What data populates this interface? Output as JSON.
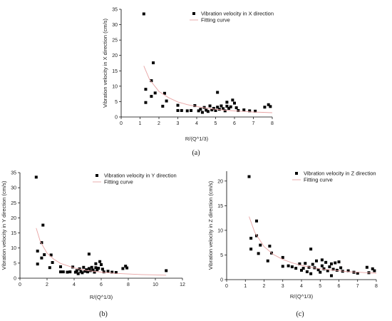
{
  "chart_data": [
    {
      "type": "scatter",
      "caption": "(a)",
      "xlabel": "R/(Q^1/3)",
      "ylabel": "Vibration velocity in X direction (cm/s)",
      "xlim": [
        0,
        8
      ],
      "ylim": [
        0,
        35
      ],
      "xticks": [
        0,
        1,
        2,
        3,
        4,
        5,
        6,
        7,
        8
      ],
      "yticks": [
        0,
        5,
        10,
        15,
        20,
        25,
        30,
        35
      ],
      "legend": "top-right",
      "grid": false,
      "series": [
        {
          "name": "Vibration velocity in X direction",
          "marker": "square",
          "color": "#000000",
          "points": [
            [
              1.2,
              33.5
            ],
            [
              1.3,
              9.0
            ],
            [
              1.3,
              4.7
            ],
            [
              1.6,
              11.8
            ],
            [
              1.6,
              6.7
            ],
            [
              1.7,
              17.6
            ],
            [
              1.8,
              7.8
            ],
            [
              2.2,
              3.5
            ],
            [
              2.3,
              7.7
            ],
            [
              2.4,
              5.2
            ],
            [
              3.0,
              3.8
            ],
            [
              3.0,
              2.1
            ],
            [
              3.2,
              2.1
            ],
            [
              3.5,
              2.0
            ],
            [
              3.7,
              2.1
            ],
            [
              3.9,
              3.7
            ],
            [
              4.1,
              2.0
            ],
            [
              4.2,
              2.5
            ],
            [
              4.3,
              1.5
            ],
            [
              4.4,
              3.1
            ],
            [
              4.5,
              2.2
            ],
            [
              4.6,
              1.8
            ],
            [
              4.7,
              3.6
            ],
            [
              4.8,
              2.3
            ],
            [
              4.9,
              2.8
            ],
            [
              5.0,
              2.1
            ],
            [
              5.1,
              3.2
            ],
            [
              5.1,
              8.0
            ],
            [
              5.2,
              2.5
            ],
            [
              5.3,
              3.6
            ],
            [
              5.4,
              2.7
            ],
            [
              5.5,
              2.0
            ],
            [
              5.6,
              3.5
            ],
            [
              5.6,
              4.8
            ],
            [
              5.7,
              2.8
            ],
            [
              5.8,
              3.3
            ],
            [
              5.9,
              5.5
            ],
            [
              6.0,
              4.5
            ],
            [
              6.1,
              3.0
            ],
            [
              6.2,
              2.1
            ],
            [
              6.5,
              2.3
            ],
            [
              6.8,
              2.0
            ],
            [
              7.1,
              1.9
            ],
            [
              7.6,
              3.2
            ],
            [
              7.8,
              4.0
            ],
            [
              7.9,
              3.4
            ]
          ]
        },
        {
          "name": "Fitting curve",
          "type": "line",
          "color": "#e8a3a3",
          "points": [
            [
              1.2,
              16.6
            ],
            [
              1.5,
              12.2
            ],
            [
              2.0,
              8.3
            ],
            [
              2.5,
              6.3
            ],
            [
              3.0,
              4.9
            ],
            [
              3.5,
              4.0
            ],
            [
              4.0,
              3.4
            ],
            [
              4.5,
              2.9
            ],
            [
              5.0,
              2.5
            ],
            [
              5.5,
              2.2
            ],
            [
              6.0,
              2.0
            ],
            [
              6.5,
              1.8
            ],
            [
              7.0,
              1.6
            ],
            [
              7.5,
              1.5
            ],
            [
              8.0,
              1.4
            ]
          ]
        }
      ]
    },
    {
      "type": "scatter",
      "caption": "(b)",
      "xlabel": "R/(Q^1/3)",
      "ylabel": "Vibration velocity in Y direction (cm/s)",
      "xlim": [
        0,
        12
      ],
      "ylim": [
        0,
        35
      ],
      "xticks": [
        0,
        2,
        4,
        6,
        8,
        10,
        12
      ],
      "yticks": [
        0,
        5,
        10,
        15,
        20,
        25,
        30,
        35
      ],
      "legend": "top-right",
      "grid": false,
      "series": [
        {
          "name": "Vibration velocity in Y direction",
          "marker": "square",
          "color": "#000000",
          "points": [
            [
              1.2,
              33.5
            ],
            [
              1.3,
              9.0
            ],
            [
              1.3,
              4.7
            ],
            [
              1.6,
              11.8
            ],
            [
              1.6,
              6.7
            ],
            [
              1.7,
              17.6
            ],
            [
              1.8,
              7.8
            ],
            [
              2.2,
              3.5
            ],
            [
              2.3,
              7.7
            ],
            [
              2.4,
              5.2
            ],
            [
              3.0,
              3.8
            ],
            [
              3.0,
              2.1
            ],
            [
              3.2,
              2.1
            ],
            [
              3.5,
              2.0
            ],
            [
              3.7,
              2.1
            ],
            [
              3.9,
              3.7
            ],
            [
              4.1,
              2.0
            ],
            [
              4.2,
              2.5
            ],
            [
              4.3,
              1.5
            ],
            [
              4.4,
              3.1
            ],
            [
              4.5,
              2.2
            ],
            [
              4.6,
              1.8
            ],
            [
              4.7,
              3.6
            ],
            [
              4.8,
              2.3
            ],
            [
              4.9,
              2.8
            ],
            [
              5.0,
              2.1
            ],
            [
              5.1,
              3.2
            ],
            [
              5.1,
              8.0
            ],
            [
              5.2,
              2.5
            ],
            [
              5.3,
              3.6
            ],
            [
              5.4,
              2.7
            ],
            [
              5.5,
              2.0
            ],
            [
              5.6,
              3.5
            ],
            [
              5.6,
              4.8
            ],
            [
              5.7,
              2.8
            ],
            [
              5.8,
              3.3
            ],
            [
              5.9,
              5.5
            ],
            [
              6.0,
              4.5
            ],
            [
              6.1,
              3.0
            ],
            [
              6.2,
              2.1
            ],
            [
              6.5,
              2.3
            ],
            [
              6.8,
              2.0
            ],
            [
              7.1,
              1.9
            ],
            [
              7.6,
              3.2
            ],
            [
              7.8,
              4.0
            ],
            [
              7.9,
              3.4
            ],
            [
              10.8,
              2.5
            ]
          ]
        },
        {
          "name": "Fitting curve",
          "type": "line",
          "color": "#e8a3a3",
          "points": [
            [
              1.2,
              16.6
            ],
            [
              1.5,
              12.2
            ],
            [
              2.0,
              8.3
            ],
            [
              2.5,
              6.3
            ],
            [
              3.0,
              4.9
            ],
            [
              4.0,
              3.4
            ],
            [
              5.0,
              2.5
            ],
            [
              6.0,
              2.0
            ],
            [
              7.0,
              1.6
            ],
            [
              8.0,
              1.4
            ],
            [
              9.0,
              1.2
            ],
            [
              10.0,
              1.1
            ],
            [
              10.8,
              1.0
            ]
          ]
        }
      ]
    },
    {
      "type": "scatter",
      "caption": "(c)",
      "xlabel": "R/(Q^1/3)",
      "ylabel": "Vibration velocity in Z direction (cm/s)",
      "xlim": [
        0,
        8
      ],
      "ylim": [
        0,
        22
      ],
      "xticks": [
        0,
        1,
        2,
        3,
        4,
        5,
        6,
        7,
        8
      ],
      "yticks": [
        0,
        5,
        10,
        15,
        20
      ],
      "legend": "top-right",
      "grid": false,
      "series": [
        {
          "name": "Vibration velocity in Z direction",
          "marker": "square",
          "color": "#000000",
          "points": [
            [
              1.2,
              20.9
            ],
            [
              1.3,
              8.4
            ],
            [
              1.3,
              6.2
            ],
            [
              1.6,
              11.9
            ],
            [
              1.6,
              8.9
            ],
            [
              1.7,
              5.3
            ],
            [
              1.8,
              7.0
            ],
            [
              2.2,
              3.8
            ],
            [
              2.3,
              6.8
            ],
            [
              2.4,
              5.4
            ],
            [
              3.0,
              4.5
            ],
            [
              3.0,
              2.7
            ],
            [
              3.3,
              2.8
            ],
            [
              3.5,
              2.6
            ],
            [
              3.7,
              2.3
            ],
            [
              3.9,
              3.2
            ],
            [
              4.0,
              1.9
            ],
            [
              4.1,
              2.3
            ],
            [
              4.2,
              3.3
            ],
            [
              4.3,
              1.6
            ],
            [
              4.4,
              2.5
            ],
            [
              4.5,
              6.2
            ],
            [
              4.5,
              1.2
            ],
            [
              4.6,
              3.1
            ],
            [
              4.7,
              2.4
            ],
            [
              4.8,
              3.8
            ],
            [
              4.9,
              2.0
            ],
            [
              5.0,
              1.5
            ],
            [
              5.1,
              2.8
            ],
            [
              5.1,
              4.0
            ],
            [
              5.2,
              2.2
            ],
            [
              5.3,
              3.5
            ],
            [
              5.4,
              1.8
            ],
            [
              5.5,
              2.6
            ],
            [
              5.6,
              0.8
            ],
            [
              5.6,
              3.2
            ],
            [
              5.7,
              2.1
            ],
            [
              5.8,
              3.4
            ],
            [
              5.9,
              1.9
            ],
            [
              6.0,
              3.6
            ],
            [
              6.1,
              2.4
            ],
            [
              6.2,
              1.7
            ],
            [
              6.5,
              1.8
            ],
            [
              6.8,
              1.5
            ],
            [
              7.0,
              1.3
            ],
            [
              7.5,
              2.5
            ],
            [
              7.6,
              1.4
            ],
            [
              7.8,
              2.2
            ],
            [
              7.9,
              1.8
            ]
          ]
        },
        {
          "name": "Fitting curve",
          "type": "line",
          "color": "#e8a3a3",
          "points": [
            [
              1.2,
              12.8
            ],
            [
              1.5,
              9.6
            ],
            [
              2.0,
              6.7
            ],
            [
              2.5,
              5.1
            ],
            [
              3.0,
              4.1
            ],
            [
              3.5,
              3.4
            ],
            [
              4.0,
              2.9
            ],
            [
              4.5,
              2.5
            ],
            [
              5.0,
              2.2
            ],
            [
              5.5,
              2.0
            ],
            [
              6.0,
              1.8
            ],
            [
              6.5,
              1.6
            ],
            [
              7.0,
              1.5
            ],
            [
              7.5,
              1.4
            ],
            [
              8.0,
              1.3
            ]
          ]
        }
      ]
    }
  ]
}
